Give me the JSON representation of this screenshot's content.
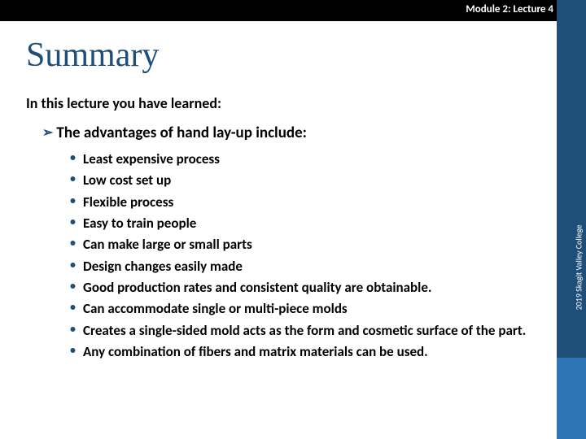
{
  "colors": {
    "topbar": "#000000",
    "sidebar_dark": "#1f4e79",
    "sidebar_light": "#2e74b5",
    "title_color": "#1f4e79",
    "bullet_marker": "#1f4e79",
    "text": "#000000",
    "bg": "#ffffff"
  },
  "header": {
    "module_label": "Module 2: Lecture 4"
  },
  "sidebar": {
    "copyright": "2019 Skagit Valley College"
  },
  "content": {
    "title": "Summary",
    "intro": "In this lecture you have learned:",
    "section_heading": "The advantages of hand lay-up include:",
    "bullets": [
      "Least expensive process",
      "Low cost set up",
      "Flexible process",
      "Easy to train people",
      "Can make large or small parts",
      "Design changes easily made",
      "Good production rates and consistent quality are obtainable.",
      "Can accommodate single or multi-piece molds",
      "Creates a single-sided mold acts as the form and cosmetic surface of the part.",
      "Any combination of fibers and matrix materials can be used."
    ]
  },
  "typography": {
    "title_font": "Times New Roman",
    "body_font": "Calibri",
    "title_size_pt": 32,
    "intro_size_pt": 14,
    "heading_size_pt": 14,
    "bullet_size_pt": 13
  }
}
